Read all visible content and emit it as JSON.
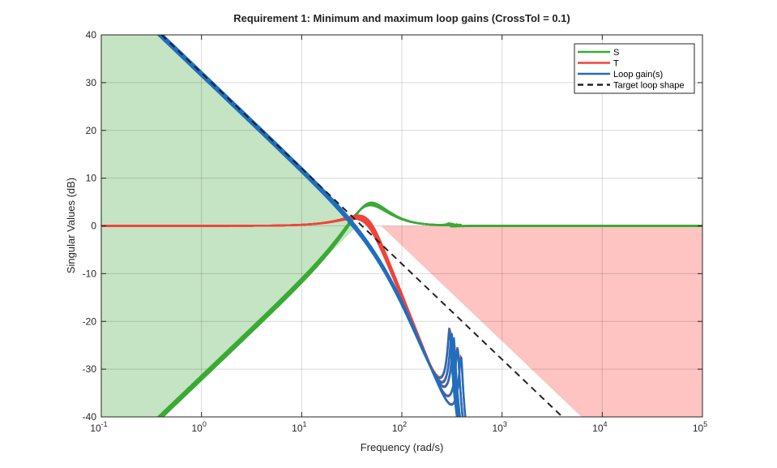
{
  "chart_data": {
    "type": "line",
    "title": "Requirement 1: Minimum and maximum loop gains (CrossTol = 0.1)",
    "xlabel": "Frequency (rad/s)",
    "ylabel": "Singular Values (dB)",
    "xscale": "log",
    "xlim": [
      0.1,
      100000
    ],
    "ylim": [
      -40,
      40
    ],
    "xticks": [
      {
        "base": "10",
        "exp": "-1",
        "value": 0.1
      },
      {
        "base": "10",
        "exp": "0",
        "value": 1
      },
      {
        "base": "10",
        "exp": "1",
        "value": 10
      },
      {
        "base": "10",
        "exp": "2",
        "value": 100
      },
      {
        "base": "10",
        "exp": "3",
        "value": 1000
      },
      {
        "base": "10",
        "exp": "4",
        "value": 10000
      },
      {
        "base": "10",
        "exp": "5",
        "value": 100000
      }
    ],
    "yticks": [
      "40",
      "30",
      "20",
      "10",
      "0",
      "-10",
      "-20",
      "-30",
      "-40"
    ],
    "grid": true,
    "legend": {
      "placement": "top-right",
      "entries": [
        {
          "label": "S",
          "color": "#3aaa35",
          "style": "solid"
        },
        {
          "label": "T",
          "color": "#f0443a",
          "style": "solid"
        },
        {
          "label": "Loop gain(s)",
          "color": "#1f6fbf",
          "style": "solid"
        },
        {
          "label": "Target loop shape",
          "color": "#222222",
          "style": "dashed"
        }
      ]
    },
    "target_loop_shape": {
      "crossover_rad_s": 40,
      "slope_db_per_decade": -20
    },
    "min_gain_region": {
      "color": "#c5e4c3",
      "crossover_rad_s": 36,
      "slope_db_per_decade": -20
    },
    "max_gain_region": {
      "color": "#fdc4c2",
      "start_rad_s": 62,
      "slope_db_per_decade": -20
    },
    "loop_models": {
      "crossovers_rad_s": [
        37,
        38,
        39,
        40,
        41
      ],
      "rolloff_pole_rad_s": 80,
      "resonance_rad_s": [
        300,
        315,
        330,
        360,
        390
      ],
      "resonance_peak_db": 20
    }
  }
}
